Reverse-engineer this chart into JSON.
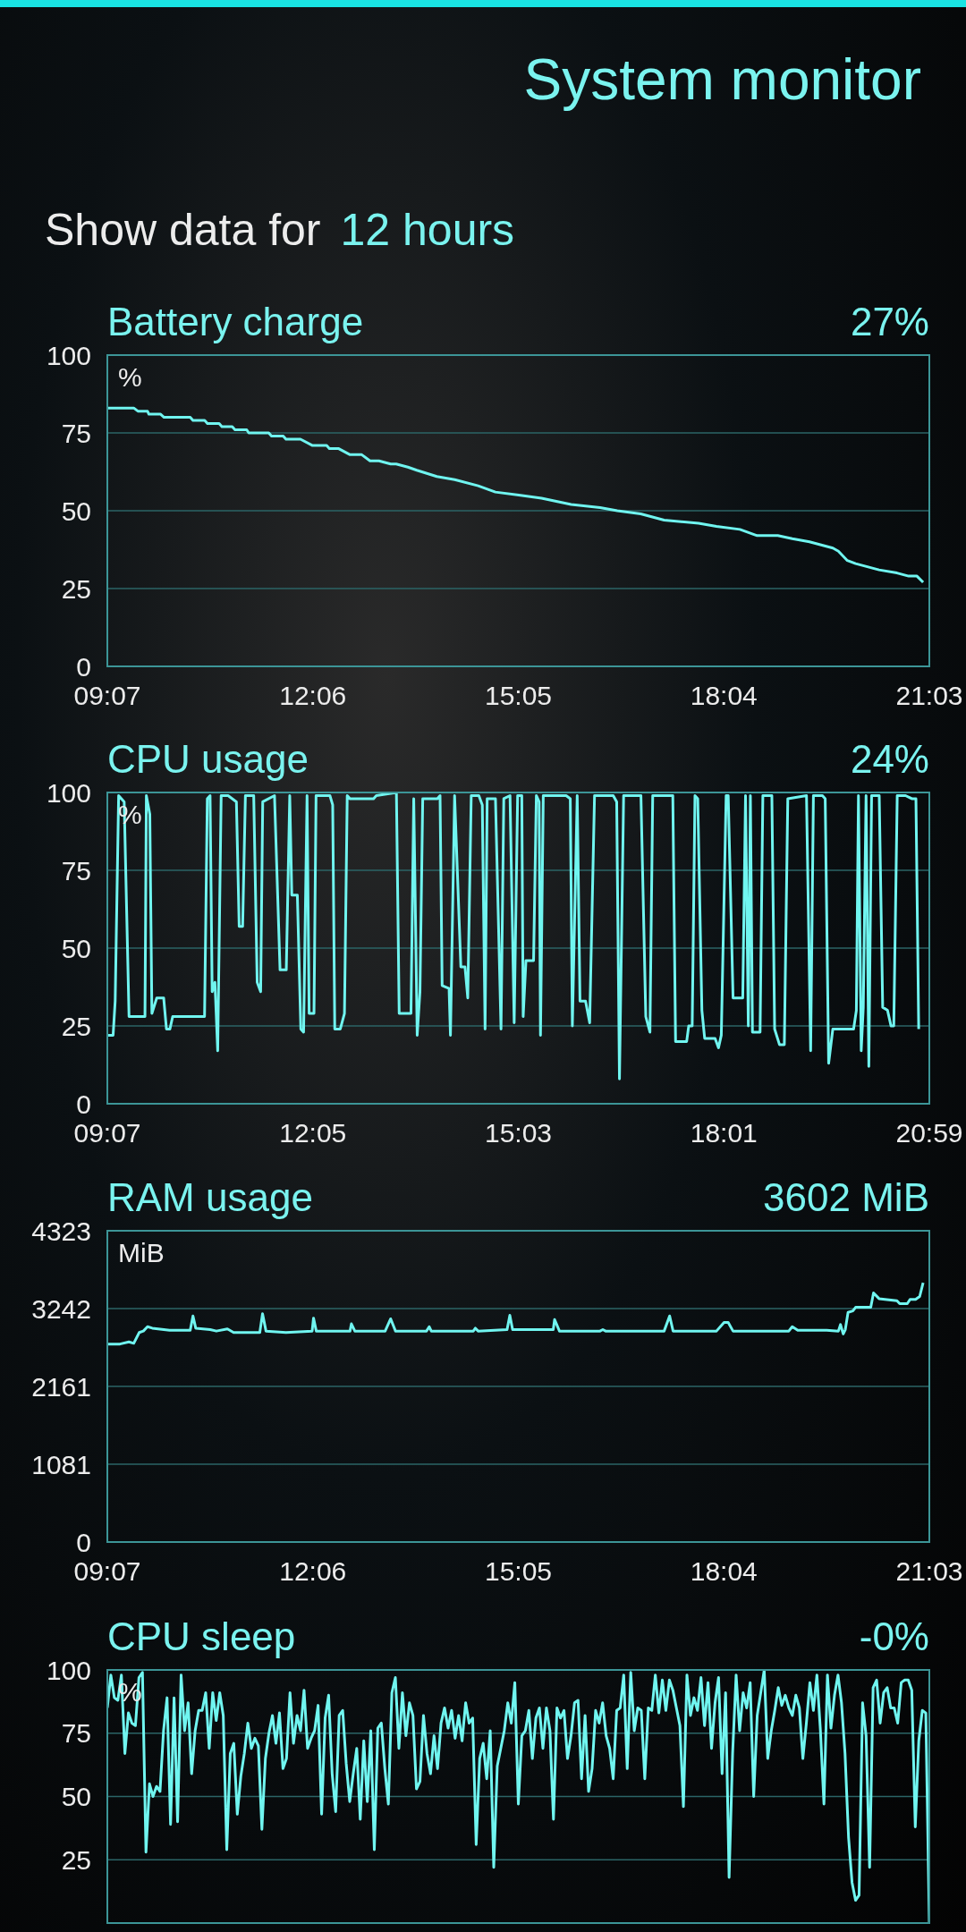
{
  "chart_data": [
    {
      "type": "other",
      "title": "System monitor",
      "annotations": [
        "Show data for",
        "12 hours"
      ]
    },
    {
      "type": "line",
      "title": "Battery charge",
      "annotations": [
        "27%"
      ],
      "ylabel": "%",
      "grid": "y",
      "color": "#70f5f0",
      "x": [
        9.12,
        9.5,
        9.56,
        9.7,
        9.72,
        9.89,
        9.94,
        10.32,
        10.36,
        10.53,
        10.57,
        10.74,
        10.78,
        10.93,
        10.97,
        11.14,
        11.17,
        11.46,
        11.5,
        11.67,
        11.71,
        11.92,
        12.09,
        12.3,
        12.34,
        12.47,
        12.64,
        12.81,
        12.93,
        13.06,
        13.23,
        13.31,
        13.48,
        13.61,
        13.9,
        14.16,
        14.5,
        14.75,
        15.09,
        15.42,
        15.85,
        16.27,
        16.52,
        16.86,
        17.2,
        17.7,
        17.96,
        18.3,
        18.55,
        18.85,
        19.06,
        19.31,
        19.65,
        19.73,
        19.86,
        19.98,
        20.15,
        20.32,
        20.58,
        20.75,
        20.87,
        20.96
      ],
      "values": [
        83,
        83,
        82,
        82,
        81,
        81,
        80,
        80,
        79,
        79,
        78,
        78,
        77,
        77,
        76,
        76,
        75,
        75,
        74,
        74,
        73,
        73,
        71,
        71,
        70,
        70,
        68,
        68,
        66,
        66,
        65,
        65,
        64,
        63,
        61,
        60,
        58,
        56,
        55,
        54,
        52,
        51,
        50,
        49,
        47,
        46,
        45,
        44,
        42,
        42,
        41,
        40,
        38,
        37,
        34,
        33,
        32,
        31,
        30,
        29,
        29,
        27
      ],
      "xlim": [
        9.1167,
        21.05
      ],
      "xticks": [
        {
          "value": 9.1167,
          "label": "09:07"
        },
        {
          "value": 12.1,
          "label": "12:06"
        },
        {
          "value": 15.0833,
          "label": "15:05"
        },
        {
          "value": 18.0667,
          "label": "18:04"
        },
        {
          "value": 21.05,
          "label": "21:03"
        }
      ],
      "ylim": [
        0,
        100
      ],
      "yticks": [
        0,
        25,
        50,
        75,
        100
      ]
    },
    {
      "type": "line",
      "title": "CPU usage",
      "annotations": [
        "24%"
      ],
      "ylabel": "%",
      "grid": "y",
      "color": "#70f5f0",
      "x": [
        9.12,
        9.2,
        9.23,
        9.28,
        9.36,
        9.43,
        9.66,
        9.68,
        9.73,
        9.76,
        9.83,
        9.93,
        9.97,
        10.02,
        10.06,
        10.52,
        10.56,
        10.6,
        10.63,
        10.67,
        10.71,
        10.76,
        10.86,
        10.98,
        11.02,
        11.07,
        11.11,
        11.23,
        11.28,
        11.33,
        11.36,
        11.53,
        11.61,
        11.7,
        11.75,
        11.78,
        11.86,
        11.91,
        11.95,
        12.0,
        12.03,
        12.1,
        12.13,
        12.33,
        12.37,
        12.4,
        12.48,
        12.54,
        12.58,
        12.62,
        12.96,
        13.0,
        13.29,
        13.33,
        13.5,
        13.54,
        13.59,
        13.63,
        13.67,
        13.88,
        13.92,
        13.95,
        14.05,
        14.07,
        14.13,
        14.22,
        14.28,
        14.32,
        14.37,
        14.48,
        14.53,
        14.57,
        14.6,
        14.72,
        14.8,
        14.84,
        14.93,
        14.99,
        15.04,
        15.1,
        15.12,
        15.16,
        15.27,
        15.31,
        15.35,
        15.37,
        15.41,
        15.74,
        15.8,
        15.83,
        15.9,
        15.94,
        16.02,
        16.08,
        16.15,
        16.42,
        16.47,
        16.51,
        16.57,
        16.82,
        16.89,
        16.95,
        16.99,
        17.28,
        17.32,
        17.48,
        17.51,
        17.56,
        17.6,
        17.64,
        17.7,
        17.74,
        17.89,
        17.94,
        17.98,
        18.05,
        18.08,
        18.15,
        18.29,
        18.33,
        18.37,
        18.4,
        18.43,
        18.54,
        18.58,
        18.71,
        18.75,
        18.82,
        18.89,
        18.94,
        19.21,
        19.27,
        19.31,
        19.44,
        19.48,
        19.53,
        19.59,
        19.89,
        19.93,
        19.96,
        20.0,
        20.03,
        20.07,
        20.11,
        20.15,
        20.26,
        20.31,
        20.38,
        20.43,
        20.47,
        20.52,
        20.64,
        20.73,
        20.79,
        20.83
      ],
      "values": [
        22,
        22,
        33,
        99,
        97,
        28,
        28,
        99,
        93,
        29,
        34,
        34,
        24,
        24,
        28,
        28,
        98,
        99,
        36,
        39,
        17,
        99,
        99,
        97,
        57,
        57,
        99,
        99,
        39,
        36,
        97,
        99,
        43,
        43,
        99,
        67,
        67,
        24,
        23,
        99,
        29,
        29,
        99,
        99,
        96,
        24,
        24,
        29,
        99,
        98,
        98,
        99,
        100,
        29,
        29,
        98,
        22,
        36,
        98,
        98,
        99,
        38,
        37,
        22,
        99,
        44,
        44,
        34,
        99,
        99,
        96,
        24,
        98,
        98,
        24,
        98,
        99,
        26,
        99,
        99,
        28,
        46,
        46,
        99,
        97,
        22,
        99,
        99,
        98,
        25,
        99,
        33,
        33,
        26,
        99,
        99,
        97,
        8,
        99,
        99,
        28,
        23,
        99,
        99,
        20,
        20,
        25,
        25,
        99,
        98,
        30,
        21,
        21,
        18,
        22,
        99,
        99,
        34,
        34,
        99,
        25,
        99,
        23,
        23,
        99,
        99,
        24,
        19,
        19,
        98,
        99,
        17,
        99,
        99,
        98,
        13,
        24,
        24,
        30,
        99,
        17,
        31,
        99,
        12,
        99,
        99,
        31,
        30,
        25,
        25,
        99,
        99,
        98,
        98,
        24
      ],
      "xlim": [
        9.1167,
        20.9833
      ],
      "xticks": [
        {
          "value": 9.1167,
          "label": "09:07"
        },
        {
          "value": 12.0833,
          "label": "12:05"
        },
        {
          "value": 15.05,
          "label": "15:03"
        },
        {
          "value": 18.0167,
          "label": "18:01"
        },
        {
          "value": 20.9833,
          "label": "20:59"
        }
      ],
      "ylim": [
        0,
        100
      ],
      "yticks": [
        0,
        25,
        50,
        75,
        100
      ]
    },
    {
      "type": "line",
      "title": "RAM usage",
      "annotations": [
        "3602 MiB"
      ],
      "ylabel": "MiB",
      "grid": "y",
      "color": "#70f5f0",
      "x": [
        9.12,
        9.3,
        9.43,
        9.5,
        9.58,
        9.64,
        9.7,
        9.77,
        10.02,
        10.32,
        10.36,
        10.4,
        10.61,
        10.7,
        10.86,
        10.95,
        11.33,
        11.37,
        11.42,
        11.71,
        12.09,
        12.11,
        12.15,
        12.64,
        12.66,
        12.71,
        13.15,
        13.23,
        13.3,
        13.75,
        13.79,
        13.82,
        14.43,
        14.46,
        14.5,
        14.92,
        14.96,
        15.0,
        15.59,
        15.61,
        15.68,
        16.27,
        16.31,
        16.35,
        17.2,
        17.28,
        17.33,
        17.96,
        18.07,
        18.13,
        18.2,
        19.01,
        19.06,
        19.14,
        19.56,
        19.73,
        19.76,
        19.8,
        19.83,
        19.87,
        19.94,
        19.98,
        20.2,
        20.24,
        20.32,
        20.58,
        20.62,
        20.73,
        20.77,
        20.85,
        20.91,
        20.96
      ],
      "values": [
        2750,
        2750,
        2780,
        2760,
        2910,
        2930,
        2990,
        2970,
        2940,
        2940,
        3140,
        2970,
        2950,
        2930,
        2960,
        2910,
        2910,
        3170,
        2930,
        2910,
        2930,
        3110,
        2930,
        2930,
        3030,
        2930,
        2930,
        3100,
        2930,
        2930,
        2990,
        2930,
        2930,
        2970,
        2930,
        2950,
        3150,
        2950,
        2950,
        3090,
        2930,
        2930,
        2950,
        2930,
        2930,
        3140,
        2930,
        2930,
        3050,
        3050,
        2930,
        2930,
        2990,
        2940,
        2940,
        2930,
        3020,
        2890,
        2950,
        3190,
        3210,
        3260,
        3260,
        3460,
        3380,
        3350,
        3310,
        3310,
        3370,
        3370,
        3410,
        3602
      ],
      "xlim": [
        9.1167,
        21.05
      ],
      "xticks": [
        {
          "value": 9.1167,
          "label": "09:07"
        },
        {
          "value": 12.1,
          "label": "12:06"
        },
        {
          "value": 15.0833,
          "label": "15:05"
        },
        {
          "value": 18.0667,
          "label": "18:04"
        },
        {
          "value": 21.05,
          "label": "21:03"
        }
      ],
      "ylim": [
        0,
        4323
      ],
      "yticks": [
        0,
        1081,
        2161,
        3242,
        4323
      ]
    },
    {
      "type": "line",
      "title": "CPU sleep",
      "annotations": [
        "-0%"
      ],
      "ylabel": "%",
      "grid": "y",
      "color": "#70f5f0",
      "tick_labels": "y",
      "categories": [
        null,
        null,
        null,
        null,
        null,
        null,
        null,
        null,
        null,
        null,
        null,
        null,
        null,
        null,
        null,
        null,
        null,
        null,
        null,
        null,
        null,
        null,
        null,
        null,
        null,
        null,
        null,
        null,
        null,
        null,
        null,
        null,
        null,
        null,
        null,
        null,
        null,
        null,
        null,
        null,
        null,
        null,
        null,
        null,
        null,
        null,
        null,
        null,
        null,
        null,
        null,
        null,
        null,
        null,
        null,
        null,
        null,
        null,
        null,
        null,
        null,
        null,
        null,
        null,
        null,
        null,
        null,
        null,
        null,
        null,
        null,
        null,
        null,
        null,
        null,
        null,
        null,
        null,
        null,
        null,
        null,
        null,
        null,
        null,
        null,
        null,
        null,
        null,
        null,
        null,
        null,
        null,
        null,
        null,
        null,
        null,
        null,
        null,
        null,
        null,
        null,
        null,
        null,
        null,
        null,
        null,
        null,
        null,
        null,
        null,
        null,
        null,
        null,
        null,
        null,
        null,
        null,
        null,
        null,
        null,
        null,
        null,
        null,
        null,
        null,
        null,
        null,
        null,
        null,
        null,
        null,
        null,
        null,
        null,
        null,
        null,
        null,
        null,
        null,
        null,
        null,
        null,
        null,
        null,
        null,
        null,
        null,
        null,
        null,
        null,
        null,
        null,
        null,
        null,
        null,
        null,
        null,
        null,
        null,
        null,
        null,
        null,
        null,
        null,
        null,
        null,
        null,
        null,
        null,
        null,
        null,
        null,
        null,
        null,
        null,
        null,
        null,
        null,
        null,
        null,
        null,
        null,
        null,
        null,
        null,
        null,
        null,
        null,
        null,
        null,
        null,
        null,
        null,
        null,
        null,
        null,
        null,
        null,
        null,
        null,
        null,
        null,
        null,
        null,
        null,
        null,
        null,
        null,
        null,
        null,
        null,
        null,
        null,
        null,
        null,
        null,
        null,
        null,
        null,
        null,
        null,
        null,
        null,
        null,
        null,
        null,
        null,
        null,
        null,
        null,
        null,
        null,
        null,
        null,
        null
      ],
      "values": [
        85,
        98,
        89,
        88,
        98,
        67,
        83,
        79,
        78,
        97,
        99,
        28,
        55,
        50,
        54,
        52,
        76,
        89,
        39,
        89,
        40,
        98,
        76,
        87,
        59,
        76,
        84,
        84,
        91,
        69,
        91,
        80,
        91,
        82,
        29,
        67,
        71,
        43,
        58,
        67,
        79,
        69,
        73,
        70,
        37,
        65,
        75,
        82,
        71,
        83,
        61,
        65,
        91,
        71,
        82,
        76,
        92,
        69,
        73,
        76,
        86,
        43,
        81,
        90,
        59,
        44,
        82,
        84,
        63,
        48,
        59,
        69,
        41,
        72,
        48,
        76,
        29,
        77,
        79,
        61,
        47,
        91,
        97,
        69,
        91,
        74,
        87,
        82,
        53,
        56,
        82,
        67,
        59,
        74,
        61,
        79,
        85,
        77,
        84,
        73,
        82,
        72,
        87,
        79,
        81,
        31,
        65,
        71,
        57,
        76,
        22,
        62,
        69,
        76,
        87,
        79,
        95,
        47,
        74,
        76,
        84,
        65,
        81,
        85,
        69,
        85,
        76,
        41,
        85,
        81,
        84,
        65,
        74,
        87,
        88,
        57,
        82,
        52,
        61,
        84,
        79,
        87,
        74,
        69,
        57,
        84,
        85,
        98,
        61,
        99,
        76,
        85,
        84,
        57,
        85,
        84,
        98,
        83,
        96,
        84,
        96,
        92,
        85,
        78,
        46,
        98,
        82,
        89,
        84,
        97,
        78,
        95,
        69,
        87,
        97,
        59,
        91,
        18,
        67,
        98,
        76,
        91,
        85,
        95,
        50,
        82,
        91,
        100,
        65,
        76,
        84,
        93,
        86,
        90,
        85,
        82,
        90,
        85,
        65,
        79,
        95,
        84,
        98,
        76,
        47,
        98,
        77,
        90,
        98,
        87,
        67,
        34,
        16,
        9,
        11,
        87,
        74,
        22,
        93,
        96,
        79,
        91,
        93,
        85,
        85,
        79,
        95,
        96,
        96,
        92,
        38,
        72,
        84,
        83,
        0
      ],
      "ylim": [
        0,
        100
      ],
      "yticks": [
        25,
        50,
        75,
        100
      ]
    }
  ]
}
